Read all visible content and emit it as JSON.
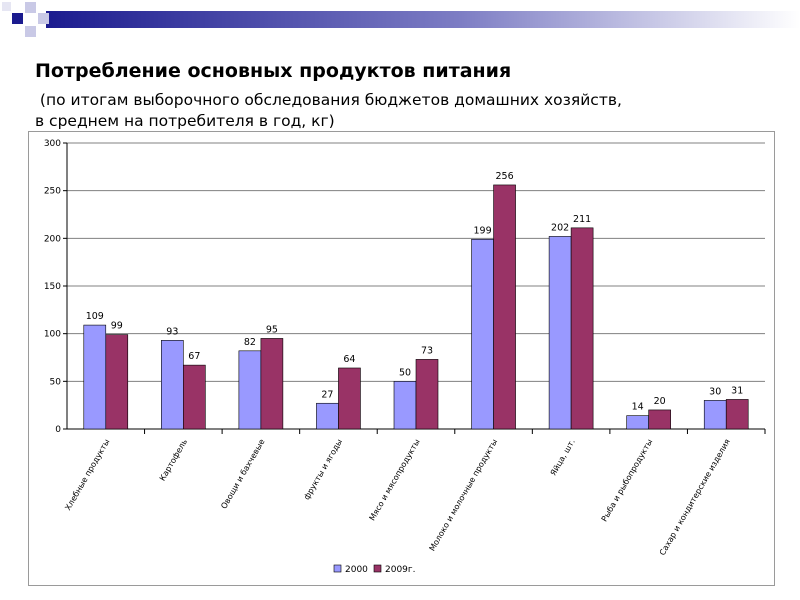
{
  "slide": {
    "title": "Потребление основных продуктов питания",
    "subtitle_line1": " (по итогам выборочного обследования бюджетов домашних хозяйств,",
    "subtitle_line2": "в среднем на потребителя в год, кг)"
  },
  "colors": {
    "deco_blue": "#1b1b8f",
    "series_2000": "#9999ff",
    "series_2009": "#993366",
    "grid": "#808080"
  },
  "chart_data": {
    "type": "bar",
    "categories": [
      "Хлебные продукты",
      "Картофель",
      "Овощи и бахчевые",
      "фрукты и ягоды",
      "Мясо и мясопродукты",
      "Молоко и молочные продукты",
      "Яйца, шт.",
      "Рыба и рыбопродукты",
      "Сахар и кондитерские изделия"
    ],
    "series": [
      {
        "name": "2000",
        "values": [
          109,
          93,
          82,
          27,
          50,
          199,
          202,
          14,
          30
        ]
      },
      {
        "name": "2009г.",
        "values": [
          99,
          67,
          95,
          64,
          73,
          256,
          211,
          20,
          31
        ]
      }
    ],
    "yticks": [
      "0",
      "50",
      "100",
      "150",
      "200",
      "250",
      "300"
    ],
    "ylim": [
      0,
      300
    ],
    "grid": true,
    "legend_position": "bottom"
  }
}
